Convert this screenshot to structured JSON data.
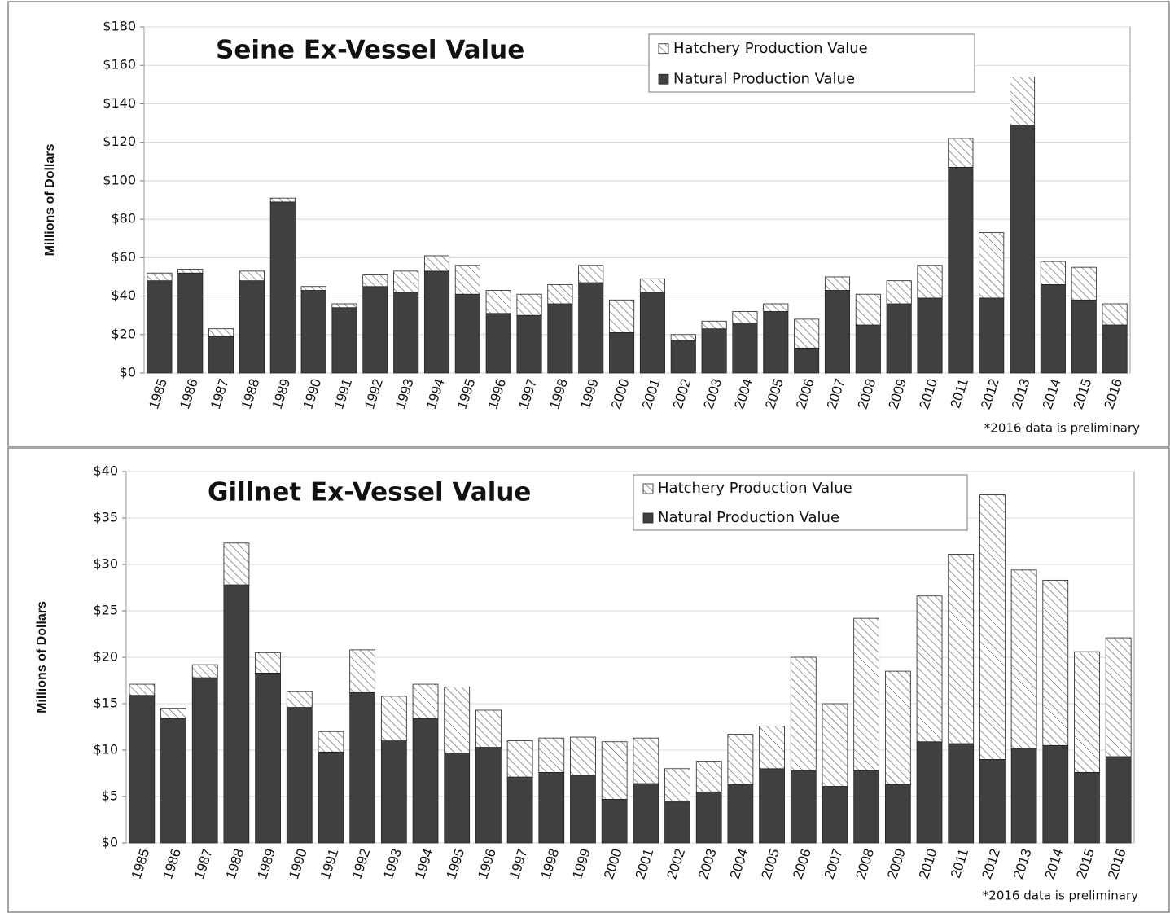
{
  "chart_data": [
    {
      "type": "stacked-bar",
      "title": "Seine Ex-Vessel Value",
      "y_label": "Millions of Dollars",
      "note": "*2016 data is preliminary",
      "categories": [
        "1985",
        "1986",
        "1987",
        "1988",
        "1989",
        "1990",
        "1991",
        "1992",
        "1993",
        "1994",
        "1995",
        "1996",
        "1997",
        "1998",
        "1999",
        "2000",
        "2001",
        "2002",
        "2003",
        "2004",
        "2005",
        "2006",
        "2007",
        "2008",
        "2009",
        "2010",
        "2011",
        "2012",
        "2013",
        "2014",
        "2015",
        "2016"
      ],
      "series": [
        {
          "name": "Natural Production Value",
          "color": "#404040",
          "values": [
            48,
            52,
            19,
            48,
            89,
            43,
            34,
            45,
            42,
            53,
            41,
            31,
            30,
            36,
            47,
            21,
            42,
            17,
            23,
            26,
            32,
            13,
            43,
            25,
            36,
            39,
            107,
            39,
            129,
            46,
            38,
            25
          ]
        },
        {
          "name": "Hatchery Production Value",
          "color": "#555555",
          "pattern": "diagonal-hatch",
          "values": [
            4,
            2,
            4,
            5,
            2,
            2,
            2,
            6,
            11,
            8,
            15,
            12,
            11,
            10,
            9,
            17,
            7,
            3,
            4,
            6,
            4,
            15,
            7,
            16,
            12,
            17,
            15,
            34,
            25,
            12,
            17,
            11
          ]
        }
      ],
      "legend_order": [
        1,
        0
      ],
      "ylim": [
        0,
        180
      ],
      "yticks": [
        {
          "value": 0,
          "label": "$0"
        },
        {
          "value": 20,
          "label": "$20"
        },
        {
          "value": 40,
          "label": "$40"
        },
        {
          "value": 60,
          "label": "$60"
        },
        {
          "value": 80,
          "label": "$80"
        },
        {
          "value": 100,
          "label": "$100"
        },
        {
          "value": 120,
          "label": "$120"
        },
        {
          "value": 140,
          "label": "$140"
        },
        {
          "value": 160,
          "label": "$160"
        },
        {
          "value": 180,
          "label": "$180"
        }
      ],
      "grid": true
    },
    {
      "type": "stacked-bar",
      "title": "Gillnet Ex-Vessel Value",
      "y_label": "Millions of Dollars",
      "note": "*2016 data is preliminary",
      "categories": [
        "1985",
        "1986",
        "1987",
        "1988",
        "1989",
        "1990",
        "1991",
        "1992",
        "1993",
        "1994",
        "1995",
        "1996",
        "1997",
        "1998",
        "1999",
        "2000",
        "2001",
        "2002",
        "2003",
        "2004",
        "2005",
        "2006",
        "2007",
        "2008",
        "2009",
        "2010",
        "2011",
        "2012",
        "2013",
        "2014",
        "2015",
        "2016"
      ],
      "series": [
        {
          "name": "Natural Production Value",
          "color": "#404040",
          "values": [
            15.9,
            13.4,
            17.8,
            27.8,
            18.3,
            14.6,
            9.8,
            16.2,
            11.0,
            13.4,
            9.7,
            10.3,
            7.1,
            7.6,
            7.3,
            4.7,
            6.4,
            4.5,
            5.5,
            6.3,
            8.0,
            7.8,
            6.1,
            7.8,
            6.3,
            10.9,
            10.7,
            9.0,
            10.2,
            10.5,
            7.6,
            9.3
          ]
        },
        {
          "name": "Hatchery Production Value",
          "color": "#555555",
          "pattern": "diagonal-hatch",
          "values": [
            1.2,
            1.1,
            1.4,
            4.5,
            2.2,
            1.7,
            2.2,
            4.6,
            4.8,
            3.7,
            7.1,
            4.0,
            3.9,
            3.7,
            4.1,
            6.2,
            4.9,
            3.5,
            3.3,
            5.4,
            4.6,
            12.2,
            8.9,
            16.4,
            12.2,
            15.7,
            20.4,
            28.5,
            19.2,
            17.8,
            13.0,
            12.8
          ]
        }
      ],
      "legend_order": [
        1,
        0
      ],
      "ylim": [
        0,
        40
      ],
      "yticks": [
        {
          "value": 0,
          "label": "$0"
        },
        {
          "value": 5,
          "label": "$5"
        },
        {
          "value": 10,
          "label": "$10"
        },
        {
          "value": 15,
          "label": "$15"
        },
        {
          "value": 20,
          "label": "$20"
        },
        {
          "value": 25,
          "label": "$25"
        },
        {
          "value": 30,
          "label": "$30"
        },
        {
          "value": 35,
          "label": "$35"
        },
        {
          "value": 40,
          "label": "$40"
        }
      ],
      "grid": true
    }
  ]
}
